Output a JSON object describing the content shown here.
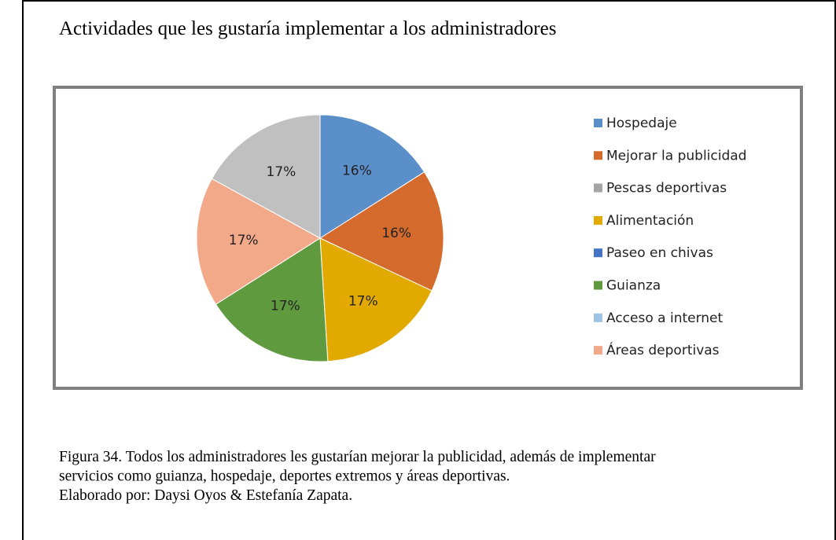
{
  "chart_data": {
    "type": "pie",
    "title": "Actividades que les gustaría implementar a los administradores",
    "categories": [
      "Hospedaje",
      "Mejorar la publicidad",
      "Pescas deportivas",
      "Alimentación",
      "Paseo en chivas",
      "Guianza",
      "Acceso a internet",
      "Áreas deportivas",
      null
    ],
    "values": [
      16,
      16,
      0,
      17,
      0,
      17,
      0,
      17,
      17
    ],
    "value_labels": [
      "16%",
      "16%",
      null,
      "17%",
      null,
      "17%",
      null,
      "17%",
      "17%"
    ],
    "colors": [
      "#5b8fc9",
      "#d46b2c",
      "#a5a5a5",
      "#e2aa00",
      "#4472c4",
      "#5f9a3f",
      "#9dc3e6",
      "#f2a98a",
      "#c0c0c0"
    ],
    "legend": "right"
  },
  "caption": {
    "lines": [
      "Figura 34.   Todos los administradores les gustarían mejorar la publicidad, además de implementar",
      "servicios como guianza, hospedaje, deportes extremos y  áreas deportivas.",
      "Elaborado por: Daysi Oyos & Estefanía Zapata."
    ]
  }
}
